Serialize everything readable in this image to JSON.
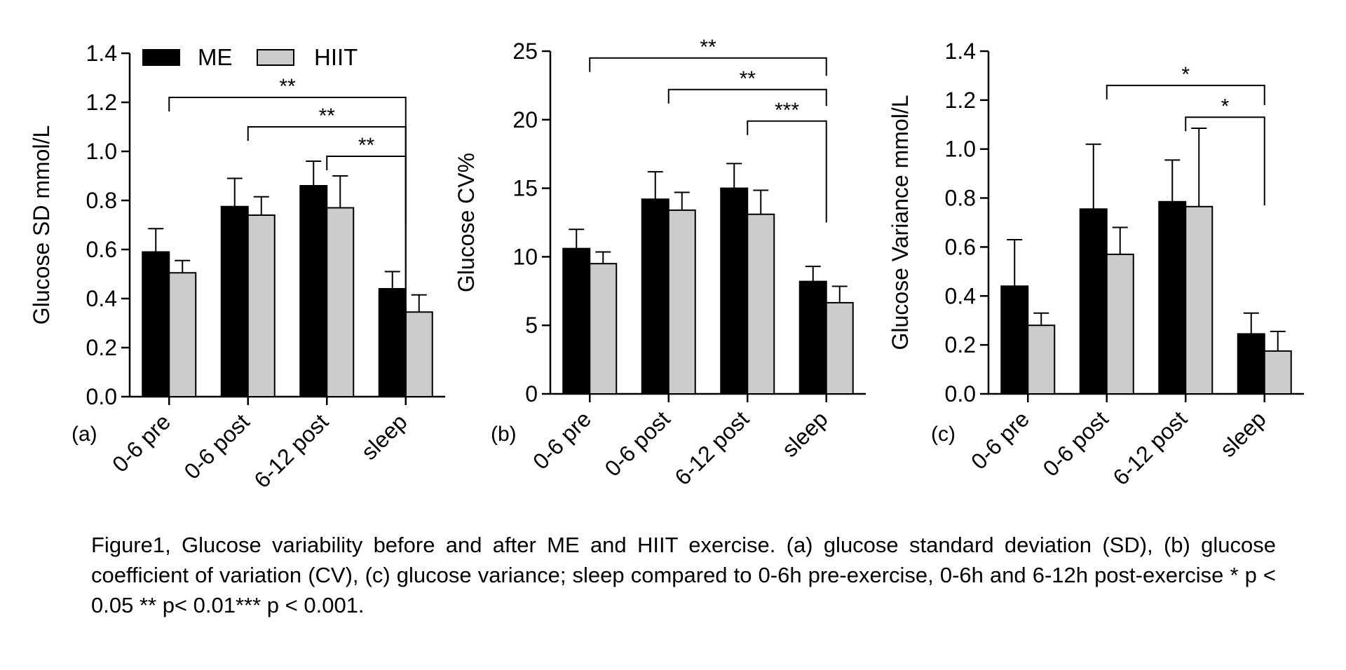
{
  "legend": [
    {
      "label": "ME",
      "color": "#000000"
    },
    {
      "label": "HIIT",
      "color": "#cccccc"
    }
  ],
  "categories": [
    "0-6 pre",
    "0-6 post",
    "6-12 post",
    "sleep"
  ],
  "caption": "Figure1, Glucose variability before and after ME and HIIT exercise. (a) glucose standard deviation (SD), (b) glucose coefficient of variation (CV), (c) glucose variance; sleep compared to 0-6h pre-exercise, 0-6h and 6-12h post-exercise * p < 0.05 ** p< 0.01*** p < 0.001.",
  "chart_data": [
    {
      "type": "bar",
      "panel_label": "(a)",
      "ylabel": "Glucose SD mmol/L",
      "ylim": [
        0,
        1.4
      ],
      "yticks": [
        0.0,
        0.2,
        0.4,
        0.6,
        0.8,
        1.0,
        1.2,
        1.4
      ],
      "tick_decimals": 1,
      "categories": [
        "0-6 pre",
        "0-6 post",
        "6-12 post",
        "sleep"
      ],
      "series": [
        {
          "name": "ME",
          "values": [
            0.59,
            0.775,
            0.86,
            0.44
          ],
          "errors": [
            0.095,
            0.115,
            0.1,
            0.07
          ]
        },
        {
          "name": "HIIT",
          "values": [
            0.505,
            0.74,
            0.77,
            0.345
          ],
          "errors": [
            0.05,
            0.075,
            0.13,
            0.07
          ]
        }
      ],
      "significance": [
        {
          "from": "0-6 pre",
          "to": "sleep",
          "label": "**",
          "y": 1.22,
          "drop_to": 0.0
        },
        {
          "from": "0-6 post",
          "to": "sleep",
          "label": "**",
          "y": 1.1,
          "drop_to": 0.0
        },
        {
          "from": "6-12 post",
          "to": "sleep",
          "label": "**",
          "y": 0.98,
          "drop_to": 0.7
        }
      ],
      "legend": "top-left"
    },
    {
      "type": "bar",
      "panel_label": "(b)",
      "ylabel": "Glucose CV%",
      "ylim": [
        0,
        25
      ],
      "yticks": [
        0,
        5,
        10,
        15,
        20,
        25
      ],
      "tick_decimals": 0,
      "categories": [
        "0-6 pre",
        "0-6 post",
        "6-12 post",
        "sleep"
      ],
      "series": [
        {
          "name": "ME",
          "values": [
            10.6,
            14.2,
            15.0,
            8.2
          ],
          "errors": [
            1.4,
            2.0,
            1.8,
            1.1
          ]
        },
        {
          "name": "HIIT",
          "values": [
            9.5,
            13.4,
            13.1,
            6.65
          ],
          "errors": [
            0.85,
            1.3,
            1.75,
            1.2
          ]
        }
      ],
      "significance": [
        {
          "from": "0-6 pre",
          "to": "sleep",
          "label": "**",
          "y": 24.5,
          "drop_to": 23.2
        },
        {
          "from": "0-6 post",
          "to": "sleep",
          "label": "**",
          "y": 22.2,
          "drop_to": 21.0
        },
        {
          "from": "6-12 post",
          "to": "sleep",
          "label": "***",
          "y": 19.9,
          "drop_to": 12.5
        }
      ]
    },
    {
      "type": "bar",
      "panel_label": "(c)",
      "ylabel": "Glucose Variance mmol/L",
      "ylim": [
        0,
        1.4
      ],
      "yticks": [
        0.0,
        0.2,
        0.4,
        0.6,
        0.8,
        1.0,
        1.2,
        1.4
      ],
      "tick_decimals": 1,
      "categories": [
        "0-6 pre",
        "0-6 post",
        "6-12 post",
        "sleep"
      ],
      "series": [
        {
          "name": "ME",
          "values": [
            0.44,
            0.755,
            0.785,
            0.245
          ],
          "errors": [
            0.19,
            0.265,
            0.17,
            0.085
          ]
        },
        {
          "name": "HIIT",
          "values": [
            0.28,
            0.57,
            0.765,
            0.175
          ],
          "errors": [
            0.05,
            0.11,
            0.32,
            0.08
          ]
        }
      ],
      "significance": [
        {
          "from": "0-6 post",
          "to": "sleep",
          "label": "*",
          "y": 1.26,
          "drop_to": 1.18
        },
        {
          "from": "6-12 post",
          "to": "sleep",
          "label": "*",
          "y": 1.13,
          "drop_to": 0.77
        }
      ]
    }
  ]
}
